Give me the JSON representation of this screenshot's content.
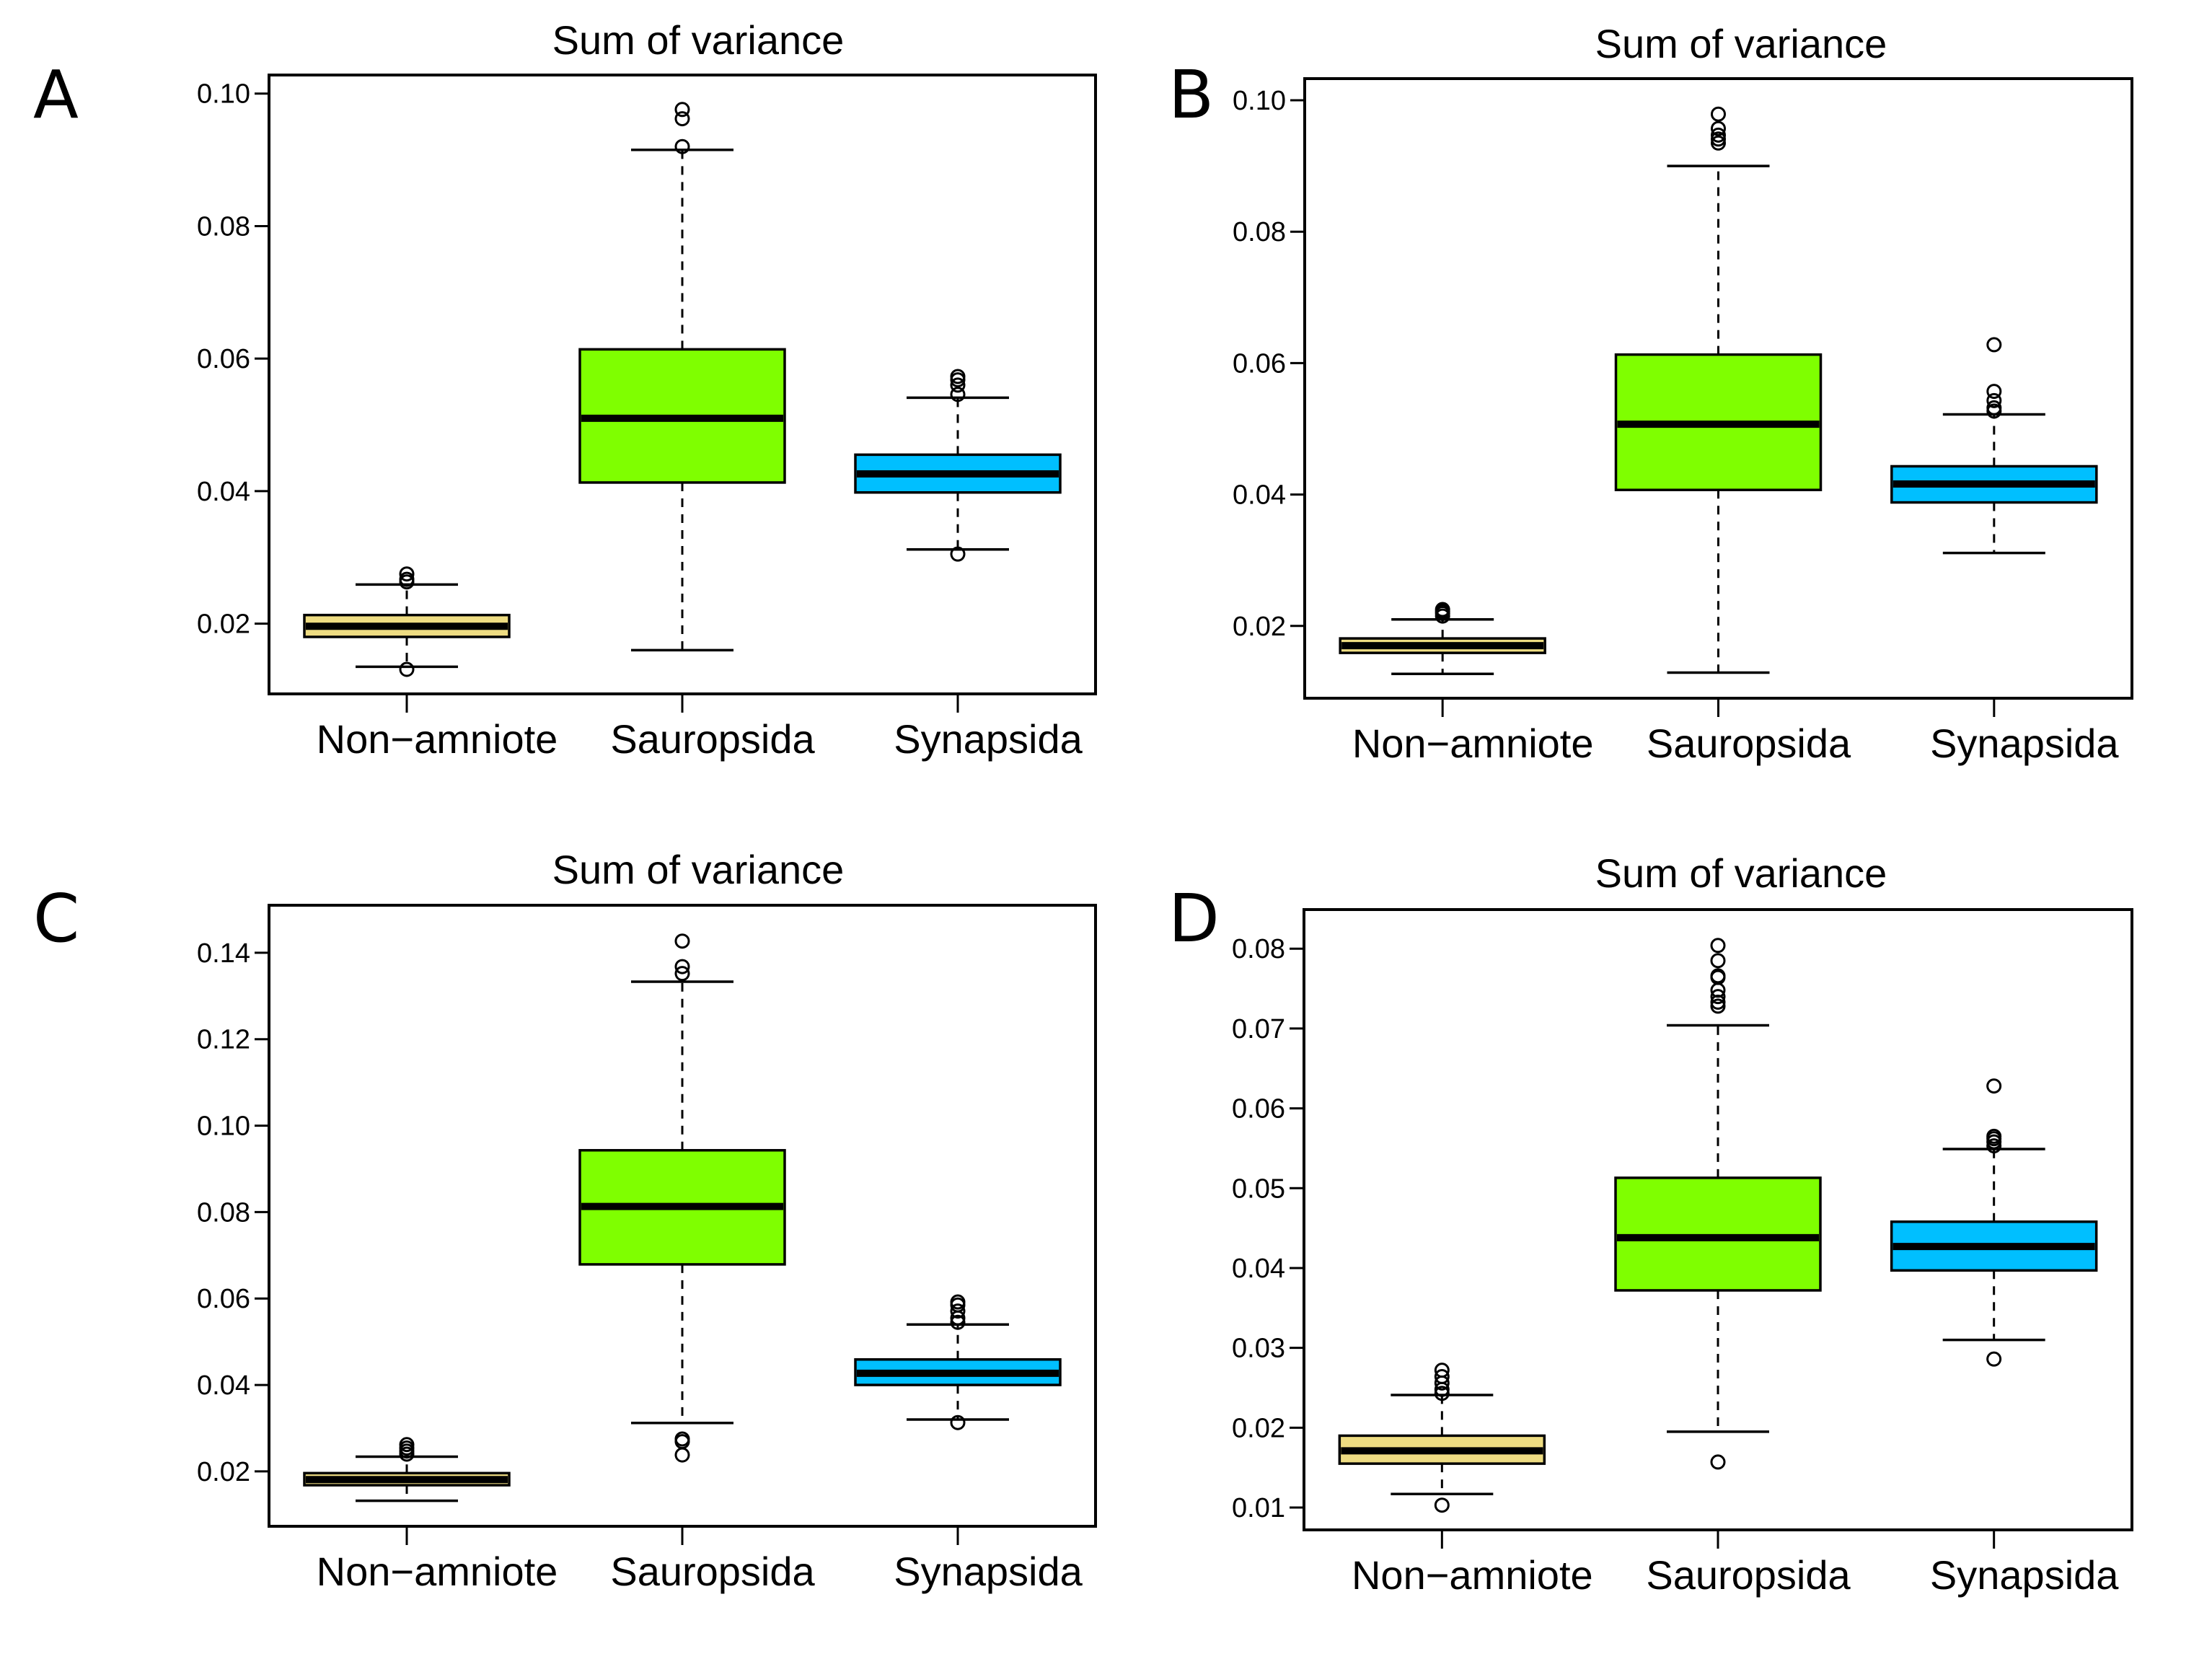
{
  "figure": {
    "categories": [
      "Non−amniote",
      "Sauropsida",
      "Synapsida"
    ],
    "category_colors": [
      "#EEDC82",
      "#7FFF00",
      "#00BFFF"
    ]
  },
  "chart_data": [
    {
      "panel": "A",
      "type": "boxplot",
      "title": "Sum of variance",
      "xlabel": "",
      "ylabel": "",
      "ylim": [
        0.0094,
        0.1028
      ],
      "yticks": [
        0.02,
        0.04,
        0.06,
        0.08,
        0.1
      ],
      "ytick_labels": [
        "0.02",
        "0.04",
        "0.06",
        "0.08",
        "0.10"
      ],
      "grid": false,
      "legend": "none",
      "categories": [
        "Non−amniote",
        "Sauropsida",
        "Synapsida"
      ],
      "series": [
        {
          "name": "Non−amniote",
          "color": "#EEDC82",
          "whisker_low": 0.0135,
          "q1": 0.018,
          "median": 0.0196,
          "q3": 0.0213,
          "whisker_high": 0.0259,
          "outliers": [
            0.0131,
            0.0263,
            0.0267,
            0.0275
          ]
        },
        {
          "name": "Sauropsida",
          "color": "#7FFF00",
          "whisker_low": 0.016,
          "q1": 0.0413,
          "median": 0.051,
          "q3": 0.0614,
          "whisker_high": 0.0915,
          "outliers": [
            0.092,
            0.0962,
            0.0976
          ]
        },
        {
          "name": "Synapsida",
          "color": "#00BFFF",
          "whisker_low": 0.0312,
          "q1": 0.0398,
          "median": 0.0426,
          "q3": 0.0455,
          "whisker_high": 0.0541,
          "outliers": [
            0.0305,
            0.0546,
            0.056,
            0.0568,
            0.0573
          ]
        }
      ]
    },
    {
      "panel": "B",
      "type": "boxplot",
      "title": "Sum of variance",
      "xlabel": "",
      "ylabel": "",
      "ylim": [
        0.009,
        0.1033
      ],
      "yticks": [
        0.02,
        0.04,
        0.06,
        0.08,
        0.1
      ],
      "ytick_labels": [
        "0.02",
        "0.04",
        "0.06",
        "0.08",
        "0.10"
      ],
      "grid": false,
      "legend": "none",
      "categories": [
        "Non−amniote",
        "Sauropsida",
        "Synapsida"
      ],
      "series": [
        {
          "name": "Non−amniote",
          "color": "#EEDC82",
          "whisker_low": 0.0127,
          "q1": 0.0159,
          "median": 0.017,
          "q3": 0.0181,
          "whisker_high": 0.021,
          "outliers": [
            0.0215,
            0.0219,
            0.0222,
            0.0225
          ]
        },
        {
          "name": "Sauropsida",
          "color": "#7FFF00",
          "whisker_low": 0.0129,
          "q1": 0.0407,
          "median": 0.0507,
          "q3": 0.0613,
          "whisker_high": 0.09,
          "outliers": [
            0.0935,
            0.0941,
            0.0947,
            0.0957,
            0.0979
          ]
        },
        {
          "name": "Synapsida",
          "color": "#00BFFF",
          "whisker_low": 0.0311,
          "q1": 0.0388,
          "median": 0.0416,
          "q3": 0.0443,
          "whisker_high": 0.0522,
          "outliers": [
            0.0527,
            0.0532,
            0.0543,
            0.0557,
            0.0628
          ]
        }
      ]
    },
    {
      "panel": "C",
      "type": "boxplot",
      "title": "Sum of variance",
      "xlabel": "",
      "ylabel": "",
      "ylim": [
        0.0073,
        0.151
      ],
      "yticks": [
        0.02,
        0.04,
        0.06,
        0.08,
        0.1,
        0.12,
        0.14
      ],
      "ytick_labels": [
        "0.02",
        "0.04",
        "0.06",
        "0.08",
        "0.10",
        "0.12",
        "0.14"
      ],
      "grid": false,
      "legend": "none",
      "categories": [
        "Non−amniote",
        "Sauropsida",
        "Synapsida"
      ],
      "series": [
        {
          "name": "Non−amniote",
          "color": "#EEDC82",
          "whisker_low": 0.0132,
          "q1": 0.0168,
          "median": 0.0181,
          "q3": 0.0196,
          "whisker_high": 0.0234,
          "outliers": [
            0.024,
            0.0247,
            0.0254,
            0.0262
          ]
        },
        {
          "name": "Sauropsida",
          "color": "#7FFF00",
          "whisker_low": 0.0312,
          "q1": 0.0679,
          "median": 0.0813,
          "q3": 0.0943,
          "whisker_high": 0.1333,
          "outliers": [
            0.0238,
            0.0269,
            0.0275,
            0.1352,
            0.1368,
            0.1427
          ]
        },
        {
          "name": "Synapsida",
          "color": "#00BFFF",
          "whisker_low": 0.032,
          "q1": 0.04,
          "median": 0.0427,
          "q3": 0.0459,
          "whisker_high": 0.054,
          "outliers": [
            0.0313,
            0.0545,
            0.0555,
            0.0571,
            0.0585,
            0.0592
          ]
        }
      ]
    },
    {
      "panel": "D",
      "type": "boxplot",
      "title": "Sum of variance",
      "xlabel": "",
      "ylabel": "",
      "ylim": [
        0.0072,
        0.0849
      ],
      "yticks": [
        0.01,
        0.02,
        0.03,
        0.04,
        0.05,
        0.06,
        0.07,
        0.08
      ],
      "ytick_labels": [
        "0.01",
        "0.02",
        "0.03",
        "0.04",
        "0.05",
        "0.06",
        "0.07",
        "0.08"
      ],
      "grid": false,
      "legend": "none",
      "categories": [
        "Non−amniote",
        "Sauropsida",
        "Synapsida"
      ],
      "series": [
        {
          "name": "Non−amniote",
          "color": "#EEDC82",
          "whisker_low": 0.0117,
          "q1": 0.0155,
          "median": 0.0171,
          "q3": 0.019,
          "whisker_high": 0.0241,
          "outliers": [
            0.0103,
            0.0243,
            0.0248,
            0.0256,
            0.0264,
            0.0272
          ]
        },
        {
          "name": "Sauropsida",
          "color": "#7FFF00",
          "whisker_low": 0.0195,
          "q1": 0.0372,
          "median": 0.0438,
          "q3": 0.0513,
          "whisker_high": 0.0704,
          "outliers": [
            0.0157,
            0.0728,
            0.0733,
            0.074,
            0.0748,
            0.0764,
            0.0766,
            0.0785,
            0.0804
          ]
        },
        {
          "name": "Synapsida",
          "color": "#00BFFF",
          "whisker_low": 0.031,
          "q1": 0.0397,
          "median": 0.0427,
          "q3": 0.0458,
          "whisker_high": 0.0549,
          "outliers": [
            0.0286,
            0.0553,
            0.0558,
            0.0562,
            0.0565,
            0.0628
          ]
        }
      ]
    }
  ]
}
